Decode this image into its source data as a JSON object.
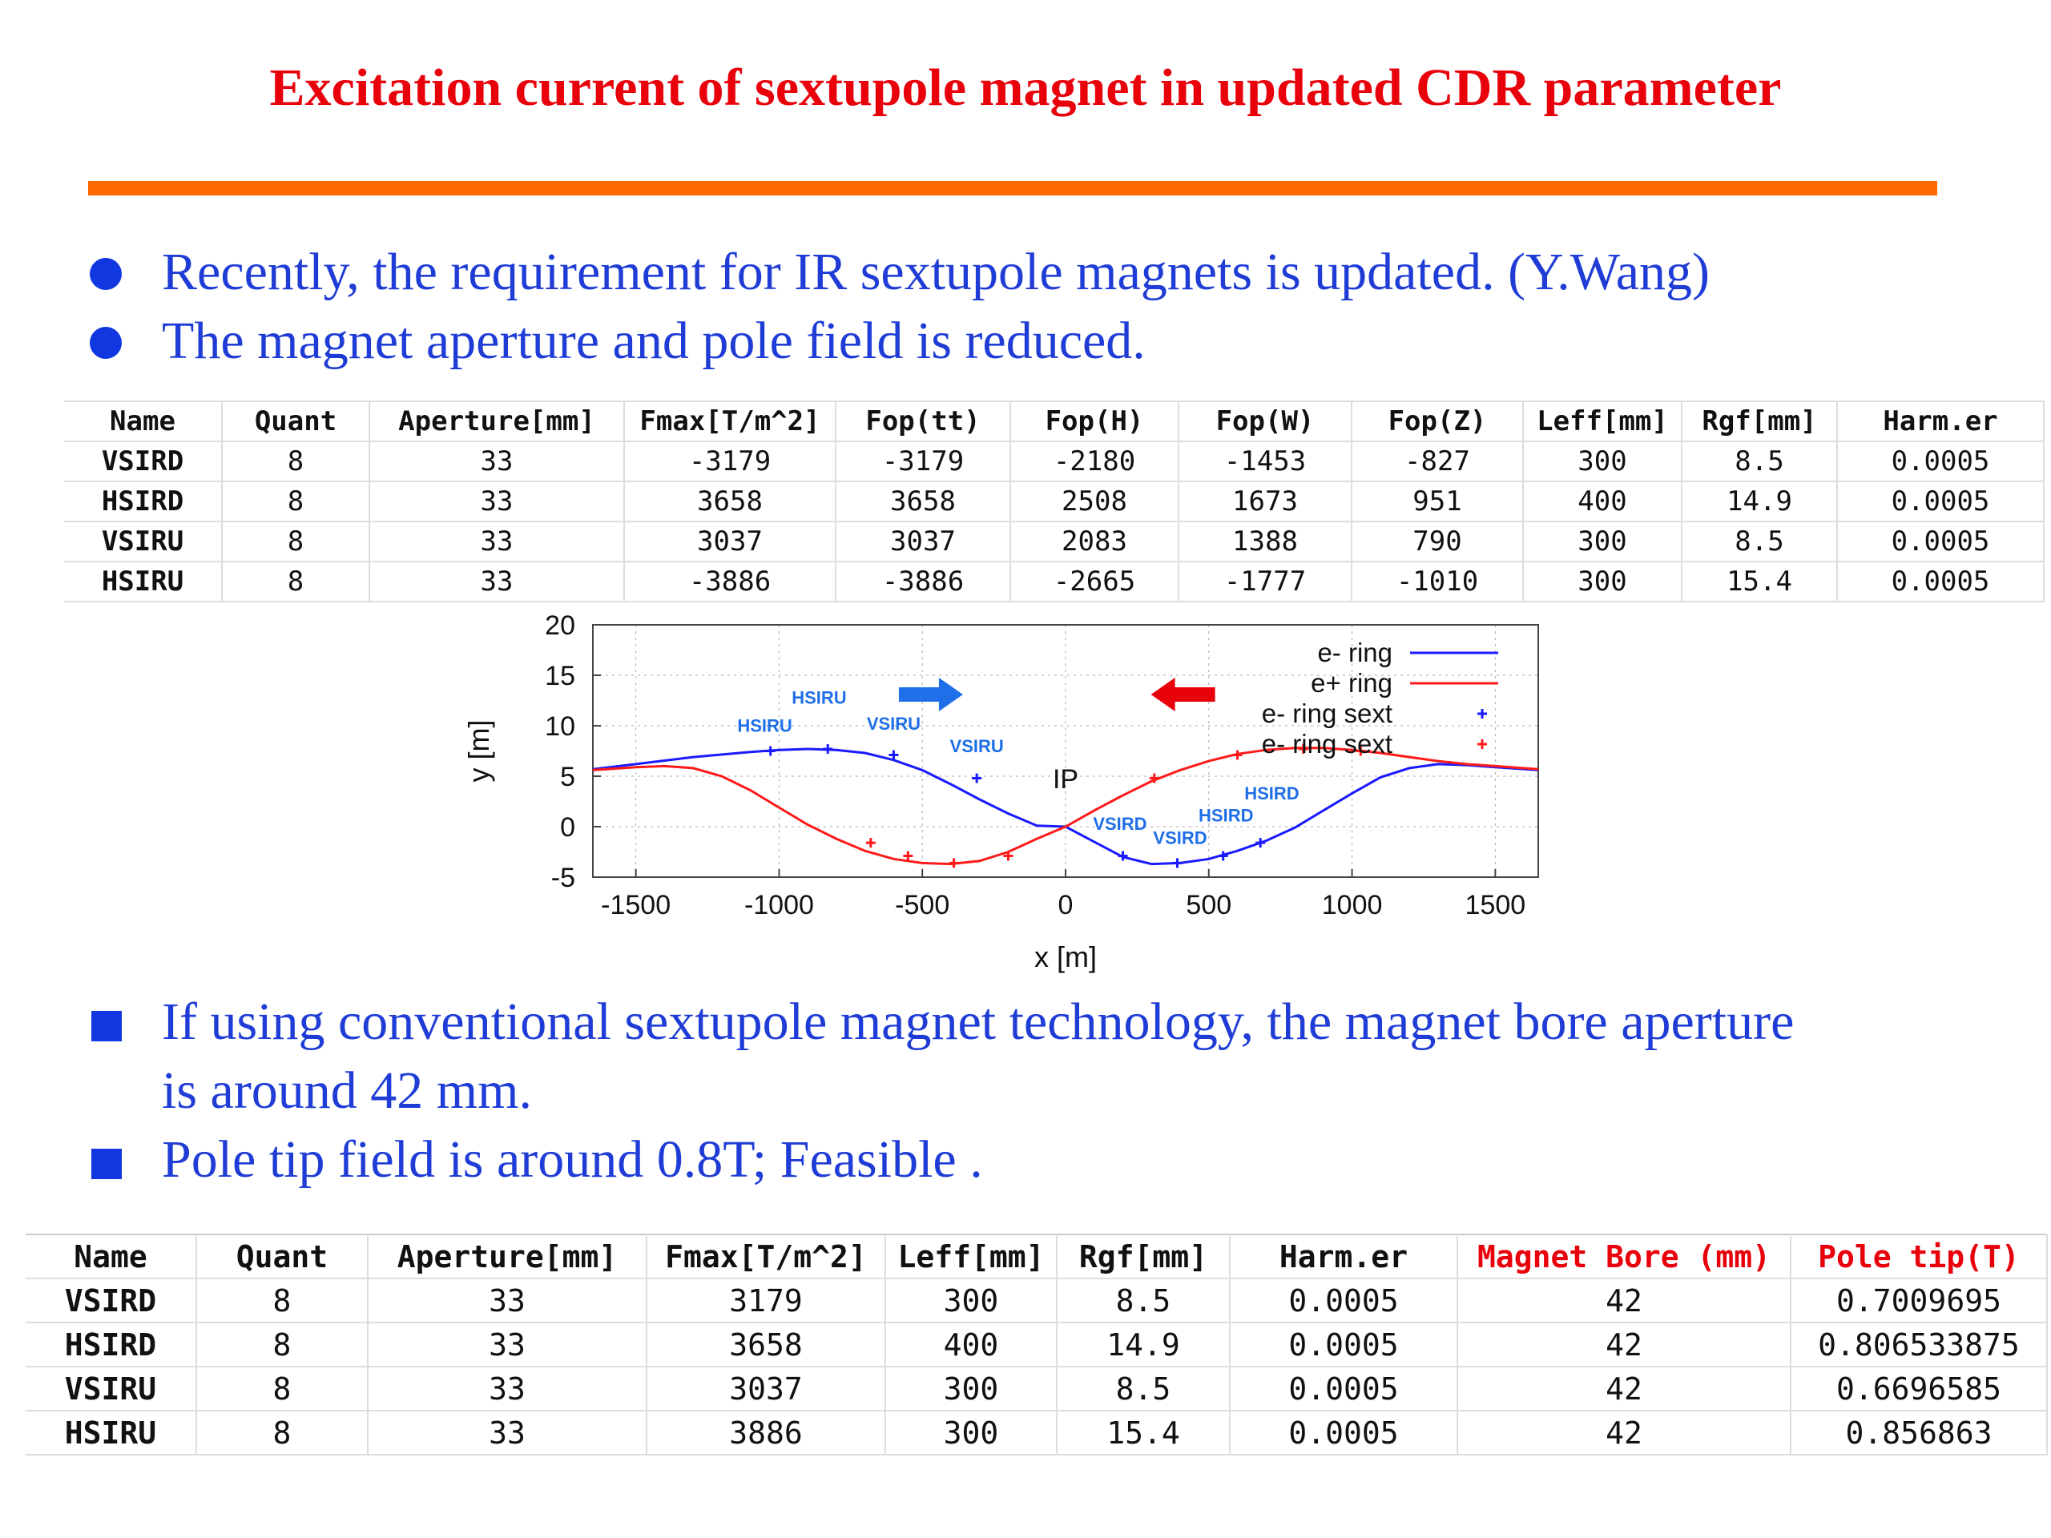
{
  "title": "Excitation current of sextupole magnet in updated CDR parameter",
  "bullets_top": [
    "Recently, the requirement for IR sextupole magnets is updated. (Y.Wang)",
    "The magnet aperture and pole field is reduced."
  ],
  "bullets_bottom": [
    {
      "line1": "If using conventional sextupole magnet technology, the magnet bore aperture",
      "line2": "is around 42 mm."
    },
    {
      "line1": "Pole tip field is around 0.8T; Feasible ."
    }
  ],
  "table1": {
    "headers": [
      "Name",
      "Quant",
      "Aperture[mm]",
      "Fmax[T/m^2]",
      "Fop(tt)",
      "Fop(H)",
      "Fop(W)",
      "Fop(Z)",
      "Leff[mm]",
      "Rgf[mm]",
      "Harm.er"
    ],
    "rows": [
      [
        "VSIRD",
        "8",
        "33",
        "-3179",
        "-3179",
        "-2180",
        "-1453",
        "-827",
        "300",
        "8.5",
        "0.0005"
      ],
      [
        "HSIRD",
        "8",
        "33",
        "3658",
        "3658",
        "2508",
        "1673",
        "951",
        "400",
        "14.9",
        "0.0005"
      ],
      [
        "VSIRU",
        "8",
        "33",
        "3037",
        "3037",
        "2083",
        "1388",
        "790",
        "300",
        "8.5",
        "0.0005"
      ],
      [
        "HSIRU",
        "8",
        "33",
        "-3886",
        "-3886",
        "-2665",
        "-1777",
        "-1010",
        "300",
        "15.4",
        "0.0005"
      ]
    ]
  },
  "table2": {
    "headers": [
      "Name",
      "Quant",
      "Aperture[mm]",
      "Fmax[T/m^2]",
      "Leff[mm]",
      "Rgf[mm]",
      "Harm.er",
      "Magnet Bore (mm)",
      "Pole tip(T)"
    ],
    "rows": [
      [
        "VSIRD",
        "8",
        "33",
        "3179",
        "300",
        "8.5",
        "0.0005",
        "42",
        "0.7009695"
      ],
      [
        "HSIRD",
        "8",
        "33",
        "3658",
        "400",
        "14.9",
        "0.0005",
        "42",
        "0.806533875"
      ],
      [
        "VSIRU",
        "8",
        "33",
        "3037",
        "300",
        "8.5",
        "0.0005",
        "42",
        "0.6696585"
      ],
      [
        "HSIRU",
        "8",
        "33",
        "3886",
        "300",
        "15.4",
        "0.0005",
        "42",
        "0.856863"
      ]
    ]
  },
  "colors": {
    "title": "#e8000b",
    "rule": "#ff6a00",
    "text_blue": "#1f3dd6",
    "e_minus": "#1a1aff",
    "e_plus": "#ff1a1a",
    "label_blue": "#1f6fe8"
  },
  "chart_data": {
    "type": "line",
    "xlabel": "x [m]",
    "ylabel": "y [m]",
    "xlim": [
      -1650,
      1650
    ],
    "ylim": [
      -5,
      20
    ],
    "xticks": [
      -1500,
      -1000,
      -500,
      0,
      500,
      1000,
      1500
    ],
    "yticks": [
      -5,
      0,
      5,
      10,
      15,
      20
    ],
    "grid": true,
    "legend_position": "top-right",
    "series": [
      {
        "name": "e- ring",
        "color": "#1a1aff",
        "x": [
          -1650,
          -1500,
          -1300,
          -1100,
          -1000,
          -900,
          -800,
          -700,
          -600,
          -500,
          -400,
          -300,
          -200,
          -100,
          0,
          100,
          200,
          300,
          400,
          500,
          600,
          700,
          800,
          900,
          1000,
          1100,
          1200,
          1300,
          1400,
          1500,
          1650
        ],
        "y": [
          5.7,
          6.2,
          6.9,
          7.4,
          7.6,
          7.7,
          7.6,
          7.3,
          6.6,
          5.6,
          4.2,
          2.7,
          1.3,
          0.1,
          0.0,
          -1.5,
          -3.0,
          -3.7,
          -3.6,
          -3.2,
          -2.4,
          -1.4,
          -0.1,
          1.6,
          3.3,
          4.9,
          5.8,
          6.2,
          6.1,
          5.9,
          5.6
        ]
      },
      {
        "name": "e+ ring",
        "color": "#ff1a1a",
        "x": [
          -1650,
          -1500,
          -1400,
          -1300,
          -1200,
          -1100,
          -1000,
          -900,
          -800,
          -700,
          -600,
          -500,
          -400,
          -300,
          -200,
          -100,
          0,
          100,
          200,
          300,
          400,
          500,
          600,
          700,
          800,
          900,
          1000,
          1100,
          1200,
          1300,
          1400,
          1500,
          1650
        ],
        "y": [
          5.6,
          5.9,
          6.0,
          5.8,
          5.0,
          3.6,
          1.9,
          0.2,
          -1.2,
          -2.4,
          -3.2,
          -3.6,
          -3.7,
          -3.4,
          -2.5,
          -1.2,
          0.0,
          1.6,
          3.1,
          4.5,
          5.6,
          6.5,
          7.2,
          7.6,
          7.8,
          7.8,
          7.6,
          7.3,
          6.9,
          6.5,
          6.2,
          6.0,
          5.7
        ]
      },
      {
        "name": "e- ring sext",
        "marker": "+",
        "color": "#1a1aff",
        "x": [
          -1030,
          -830,
          -600,
          -310,
          200,
          390,
          550,
          680
        ],
        "y": [
          7.5,
          7.7,
          7.1,
          4.8,
          -2.9,
          -3.6,
          -2.9,
          -1.6
        ]
      },
      {
        "name": "e- ring sext",
        "marker": "+",
        "color": "#ff1a1a",
        "x": [
          -680,
          -550,
          -390,
          -200,
          310,
          600,
          830,
          1030
        ],
        "y": [
          -1.6,
          -2.9,
          -3.6,
          -2.9,
          4.8,
          7.1,
          7.7,
          7.5
        ]
      }
    ],
    "annotations": [
      {
        "text": "HSIRU",
        "x": -860,
        "y": 12.2
      },
      {
        "text": "HSIRU",
        "x": -1050,
        "y": 9.4
      },
      {
        "text": "VSIRU",
        "x": -600,
        "y": 9.6
      },
      {
        "text": "VSIRU",
        "x": -310,
        "y": 7.4
      },
      {
        "text": "IP",
        "x": 0,
        "y": 3.8
      },
      {
        "text": "HSIRD",
        "x": 720,
        "y": 2.7
      },
      {
        "text": "HSIRD",
        "x": 560,
        "y": 0.5
      },
      {
        "text": "VSIRD",
        "x": 190,
        "y": -0.3
      },
      {
        "text": "VSIRD",
        "x": 400,
        "y": -1.7
      }
    ],
    "arrows": [
      {
        "direction": "right",
        "color": "#1f6fe8",
        "x": -470,
        "y": 13.1
      },
      {
        "direction": "left",
        "color": "#e8000b",
        "x": 410,
        "y": 13.1
      }
    ]
  }
}
